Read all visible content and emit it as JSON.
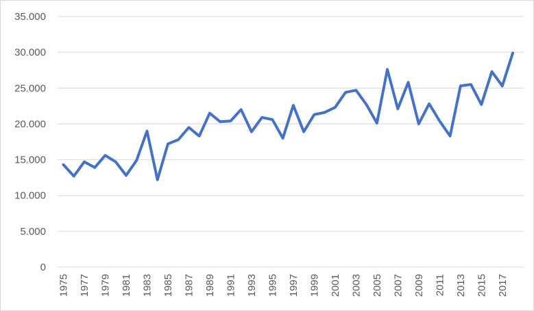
{
  "chart_data": {
    "type": "line",
    "title": "",
    "xlabel": "",
    "ylabel": "",
    "ylim": [
      0,
      35000
    ],
    "y_ticks": [
      "0",
      "5.000",
      "10.000",
      "15.000",
      "20.000",
      "25.000",
      "30.000",
      "35.000"
    ],
    "y_tick_values": [
      0,
      5000,
      10000,
      15000,
      20000,
      25000,
      30000,
      35000
    ],
    "x_tick_labels": [
      "1975",
      "1977",
      "1979",
      "1981",
      "1983",
      "1985",
      "1987",
      "1989",
      "1991",
      "1993",
      "1995",
      "1997",
      "1999",
      "2001",
      "2003",
      "2005",
      "2007",
      "2009",
      "2011",
      "2013",
      "2015",
      "2017"
    ],
    "grid": "horizontal",
    "line_color": "#4472c4",
    "series": [
      {
        "x": [
          1975,
          1976,
          1977,
          1978,
          1979,
          1980,
          1981,
          1982,
          1983,
          1984,
          1985,
          1986,
          1987,
          1988,
          1989,
          1990,
          1991,
          1992,
          1993,
          1994,
          1995,
          1996,
          1997,
          1998,
          1999,
          2000,
          2001,
          2002,
          2003,
          2004,
          2005,
          2006,
          2007,
          2008,
          2009,
          2010,
          2011,
          2012,
          2013,
          2014,
          2015,
          2016,
          2017,
          2018
        ],
        "values": [
          14300,
          12700,
          14700,
          13900,
          15600,
          14700,
          12800,
          14900,
          19000,
          12200,
          17200,
          17800,
          19500,
          18300,
          21500,
          20300,
          20400,
          22000,
          18900,
          20900,
          20600,
          18000,
          22600,
          18900,
          21300,
          21600,
          22300,
          24400,
          24700,
          22700,
          20100,
          27600,
          22100,
          25800,
          20000,
          22800,
          20400,
          18300,
          25300,
          25500,
          22700,
          27300,
          25300,
          29900
        ]
      }
    ]
  }
}
